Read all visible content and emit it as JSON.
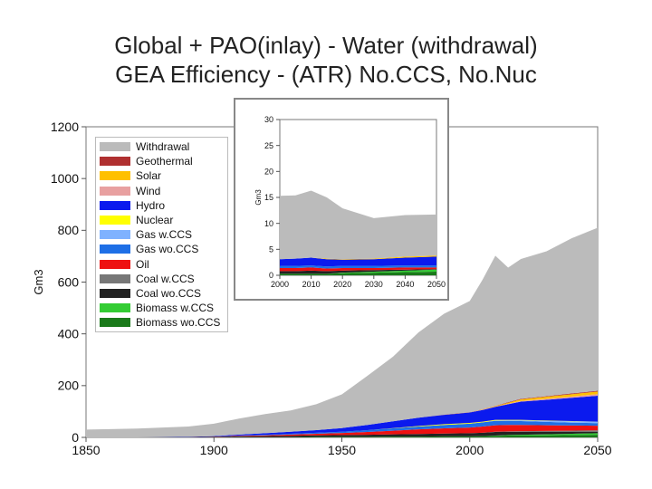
{
  "title_line1": "Global + PAO(inlay) - Water (withdrawal)",
  "title_line2": "GEA Efficiency - (ATR) No.CCS, No.Nuc",
  "chart_data": [
    {
      "type": "area",
      "ylabel": "Gm3",
      "xlim": [
        1850,
        2050
      ],
      "ylim": [
        0,
        1200
      ],
      "xticks": [
        1850,
        1900,
        1950,
        2000,
        2050
      ],
      "yticks": [
        0,
        200,
        400,
        600,
        800,
        1000,
        1200
      ],
      "x": [
        1850,
        1870,
        1890,
        1900,
        1910,
        1920,
        1930,
        1940,
        1950,
        1960,
        1970,
        1980,
        1990,
        2000,
        2005,
        2010,
        2015,
        2020,
        2030,
        2040,
        2050
      ],
      "series": [
        {
          "name": "Biomass wo.CCS",
          "color": "#1a7a1a",
          "values": [
            0,
            0,
            0,
            0,
            1,
            1,
            1,
            2,
            2,
            2,
            3,
            3,
            4,
            4,
            5,
            6,
            7,
            7,
            8,
            9,
            10
          ]
        },
        {
          "name": "Biomass w.CCS",
          "color": "#33cc33",
          "values": [
            0,
            0,
            0,
            0,
            0,
            0,
            0,
            0,
            0,
            0,
            0,
            0,
            0,
            0,
            0,
            1,
            2,
            3,
            4,
            5,
            6
          ]
        },
        {
          "name": "Coal wo.CCS",
          "color": "#222222",
          "values": [
            0,
            0,
            1,
            2,
            3,
            4,
            5,
            6,
            7,
            8,
            9,
            10,
            11,
            12,
            13,
            14,
            12,
            11,
            9,
            7,
            5
          ]
        },
        {
          "name": "Coal w.CCS",
          "color": "#777777",
          "values": [
            0,
            0,
            0,
            0,
            0,
            0,
            0,
            0,
            0,
            0,
            0,
            0,
            0,
            0,
            0,
            1,
            2,
            3,
            4,
            5,
            6
          ]
        },
        {
          "name": "Oil",
          "color": "#ee1111",
          "values": [
            0,
            0,
            0,
            1,
            2,
            3,
            5,
            6,
            8,
            11,
            14,
            18,
            20,
            22,
            24,
            25,
            25,
            24,
            22,
            20,
            18
          ]
        },
        {
          "name": "Gas wo.CCS",
          "color": "#1e6fe6",
          "values": [
            0,
            0,
            0,
            0,
            1,
            2,
            3,
            4,
            5,
            7,
            9,
            11,
            13,
            15,
            16,
            17,
            16,
            15,
            13,
            11,
            10
          ]
        },
        {
          "name": "Gas w.CCS",
          "color": "#7fb2ff",
          "values": [
            0,
            0,
            0,
            0,
            0,
            0,
            0,
            0,
            0,
            0,
            0,
            0,
            0,
            0,
            0,
            1,
            2,
            3,
            4,
            5,
            6
          ]
        },
        {
          "name": "Nuclear",
          "color": "#ffff00",
          "values": [
            0,
            0,
            0,
            0,
            0,
            0,
            0,
            0,
            0,
            0,
            1,
            2,
            3,
            3,
            3,
            3,
            2,
            2,
            1,
            1,
            0
          ]
        },
        {
          "name": "Hydro",
          "color": "#0b1aee",
          "values": [
            0,
            0,
            1,
            2,
            4,
            6,
            8,
            10,
            14,
            20,
            26,
            32,
            36,
            40,
            45,
            50,
            60,
            70,
            80,
            90,
            100
          ]
        },
        {
          "name": "Wind",
          "color": "#e8a0a0",
          "values": [
            0,
            0,
            0,
            0,
            0,
            0,
            0,
            0,
            0,
            0,
            0,
            0,
            0,
            0,
            1,
            1,
            2,
            3,
            4,
            5,
            6
          ]
        },
        {
          "name": "Solar",
          "color": "#ffc000",
          "values": [
            0,
            0,
            0,
            0,
            0,
            0,
            0,
            0,
            0,
            0,
            0,
            0,
            0,
            0,
            1,
            2,
            4,
            6,
            8,
            9,
            10
          ]
        },
        {
          "name": "Geothermal",
          "color": "#b03030",
          "values": [
            0,
            0,
            0,
            0,
            0,
            0,
            0,
            0,
            0,
            0,
            0,
            0,
            1,
            1,
            1,
            1,
            2,
            2,
            2,
            3,
            3
          ]
        },
        {
          "name": "Withdrawal",
          "color": "#bbbbbb",
          "values": [
            30,
            34,
            40,
            48,
            62,
            74,
            82,
            100,
            130,
            190,
            250,
            330,
            390,
            430,
            500,
            580,
            520,
            540,
            560,
            600,
            630
          ]
        }
      ]
    },
    {
      "type": "area",
      "ylabel": "Gm3",
      "xlim": [
        2000,
        2050
      ],
      "ylim": [
        0,
        30
      ],
      "xticks": [
        2000,
        2010,
        2020,
        2030,
        2040,
        2050
      ],
      "yticks": [
        0,
        5,
        10,
        15,
        20,
        25,
        30
      ],
      "x": [
        2000,
        2005,
        2010,
        2015,
        2020,
        2030,
        2040,
        2050
      ],
      "series": [
        {
          "name": "Biomass wo.CCS",
          "color": "#1a7a1a",
          "values": [
            0.3,
            0.3,
            0.3,
            0.3,
            0.4,
            0.5,
            0.6,
            0.7
          ]
        },
        {
          "name": "Biomass w.CCS",
          "color": "#33cc33",
          "values": [
            0,
            0,
            0,
            0,
            0.1,
            0.2,
            0.3,
            0.4
          ]
        },
        {
          "name": "Coal wo.CCS",
          "color": "#222222",
          "values": [
            0.5,
            0.5,
            0.6,
            0.5,
            0.4,
            0.3,
            0.2,
            0.1
          ]
        },
        {
          "name": "Oil",
          "color": "#ee1111",
          "values": [
            0.6,
            0.6,
            0.6,
            0.5,
            0.5,
            0.4,
            0.4,
            0.3
          ]
        },
        {
          "name": "Gas wo.CCS",
          "color": "#1e6fe6",
          "values": [
            0.4,
            0.4,
            0.4,
            0.4,
            0.4,
            0.4,
            0.4,
            0.4
          ]
        },
        {
          "name": "Hydro",
          "color": "#0b1aee",
          "values": [
            1.3,
            1.4,
            1.5,
            1.4,
            1.2,
            1.3,
            1.5,
            1.7
          ]
        },
        {
          "name": "Solar",
          "color": "#ffc000",
          "values": [
            0,
            0,
            0,
            0.1,
            0.1,
            0.1,
            0.2,
            0.2
          ]
        },
        {
          "name": "Withdrawal",
          "color": "#bbbbbb",
          "values": [
            12.2,
            12.2,
            12.9,
            11.8,
            9.8,
            7.8,
            8,
            7.9
          ]
        }
      ]
    }
  ]
}
